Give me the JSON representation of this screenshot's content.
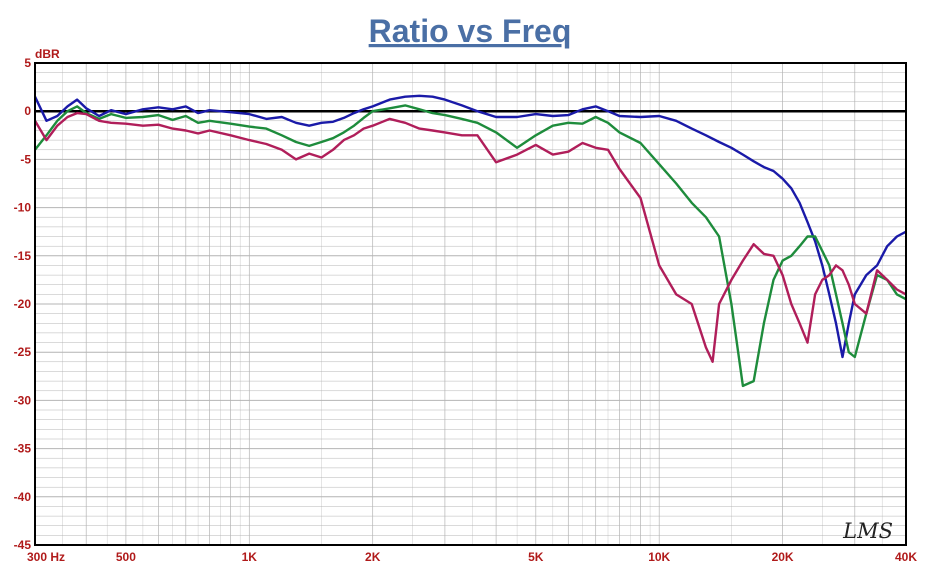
{
  "chart_data": {
    "type": "line",
    "title": "Ratio vs Freq",
    "ylabel": "dBR",
    "xlabel": "",
    "x_scale": "log",
    "xlim": [
      300,
      40000
    ],
    "ylim": [
      -45,
      5
    ],
    "y_ticks": [
      5,
      0,
      -5,
      -10,
      -15,
      -20,
      -25,
      -30,
      -35,
      -40,
      -45
    ],
    "x_ticks": [
      {
        "value": 300,
        "label": "300  Hz"
      },
      {
        "value": 500,
        "label": "500"
      },
      {
        "value": 1000,
        "label": "1K"
      },
      {
        "value": 2000,
        "label": "2K"
      },
      {
        "value": 5000,
        "label": "5K"
      },
      {
        "value": 10000,
        "label": "10K"
      },
      {
        "value": 20000,
        "label": "20K"
      },
      {
        "value": 40000,
        "label": "40K"
      }
    ],
    "reference_line": 0,
    "grid": true,
    "watermark": "LMS",
    "colors": {
      "title": "#4a6fa5",
      "tick_labels": "#b01a1a",
      "grid": "#b4b4b4",
      "frame": "#000000"
    },
    "series": [
      {
        "color": "#1a1aa8",
        "points": [
          [
            300,
            1.5
          ],
          [
            320,
            -1
          ],
          [
            340,
            -0.5
          ],
          [
            360,
            0.5
          ],
          [
            380,
            1.2
          ],
          [
            400,
            0.3
          ],
          [
            430,
            -0.5
          ],
          [
            460,
            0.1
          ],
          [
            500,
            -0.3
          ],
          [
            550,
            0.2
          ],
          [
            600,
            0.4
          ],
          [
            650,
            0.2
          ],
          [
            700,
            0.5
          ],
          [
            750,
            -0.2
          ],
          [
            800,
            0.1
          ],
          [
            900,
            -0.1
          ],
          [
            1000,
            -0.3
          ],
          [
            1100,
            -0.8
          ],
          [
            1200,
            -0.6
          ],
          [
            1300,
            -1.2
          ],
          [
            1400,
            -1.5
          ],
          [
            1500,
            -1.2
          ],
          [
            1600,
            -1.1
          ],
          [
            1700,
            -0.7
          ],
          [
            1800,
            -0.2
          ],
          [
            1900,
            0.2
          ],
          [
            2000,
            0.5
          ],
          [
            2200,
            1.2
          ],
          [
            2400,
            1.5
          ],
          [
            2600,
            1.6
          ],
          [
            2800,
            1.5
          ],
          [
            3000,
            1.2
          ],
          [
            3300,
            0.6
          ],
          [
            3600,
            0
          ],
          [
            4000,
            -0.6
          ],
          [
            4500,
            -0.6
          ],
          [
            5000,
            -0.3
          ],
          [
            5500,
            -0.5
          ],
          [
            6000,
            -0.4
          ],
          [
            6500,
            0.2
          ],
          [
            7000,
            0.5
          ],
          [
            7500,
            0
          ],
          [
            8000,
            -0.5
          ],
          [
            9000,
            -0.6
          ],
          [
            10000,
            -0.5
          ],
          [
            11000,
            -1
          ],
          [
            12000,
            -1.8
          ],
          [
            13000,
            -2.5
          ],
          [
            14000,
            -3.2
          ],
          [
            15000,
            -3.8
          ],
          [
            16000,
            -4.5
          ],
          [
            17000,
            -5.2
          ],
          [
            18000,
            -5.8
          ],
          [
            19000,
            -6.2
          ],
          [
            20000,
            -7
          ],
          [
            21000,
            -8
          ],
          [
            22000,
            -9.5
          ],
          [
            23000,
            -11.5
          ],
          [
            24000,
            -13.5
          ],
          [
            25000,
            -16
          ],
          [
            26000,
            -19
          ],
          [
            27000,
            -22
          ],
          [
            28000,
            -25.5
          ],
          [
            29000,
            -22
          ],
          [
            30000,
            -19
          ],
          [
            32000,
            -17
          ],
          [
            34000,
            -16
          ],
          [
            36000,
            -14
          ],
          [
            38000,
            -13
          ],
          [
            40000,
            -12.5
          ]
        ]
      },
      {
        "color": "#1e8c3c",
        "points": [
          [
            300,
            -4
          ],
          [
            320,
            -2.5
          ],
          [
            340,
            -1
          ],
          [
            360,
            0
          ],
          [
            380,
            0.5
          ],
          [
            400,
            -0.2
          ],
          [
            430,
            -0.8
          ],
          [
            460,
            -0.3
          ],
          [
            500,
            -0.7
          ],
          [
            550,
            -0.6
          ],
          [
            600,
            -0.4
          ],
          [
            650,
            -0.9
          ],
          [
            700,
            -0.5
          ],
          [
            750,
            -1.2
          ],
          [
            800,
            -1
          ],
          [
            900,
            -1.3
          ],
          [
            1000,
            -1.6
          ],
          [
            1100,
            -1.8
          ],
          [
            1200,
            -2.5
          ],
          [
            1300,
            -3.2
          ],
          [
            1400,
            -3.6
          ],
          [
            1500,
            -3.2
          ],
          [
            1600,
            -2.8
          ],
          [
            1700,
            -2.2
          ],
          [
            1800,
            -1.5
          ],
          [
            1900,
            -0.7
          ],
          [
            2000,
            0
          ],
          [
            2200,
            0.3
          ],
          [
            2400,
            0.6
          ],
          [
            2600,
            0.2
          ],
          [
            2800,
            -0.2
          ],
          [
            3000,
            -0.4
          ],
          [
            3300,
            -0.8
          ],
          [
            3600,
            -1.2
          ],
          [
            4000,
            -2.2
          ],
          [
            4500,
            -3.8
          ],
          [
            5000,
            -2.5
          ],
          [
            5500,
            -1.5
          ],
          [
            6000,
            -1.2
          ],
          [
            6500,
            -1.3
          ],
          [
            7000,
            -0.6
          ],
          [
            7500,
            -1.2
          ],
          [
            8000,
            -2.2
          ],
          [
            9000,
            -3.3
          ],
          [
            10000,
            -5.5
          ],
          [
            11000,
            -7.5
          ],
          [
            12000,
            -9.5
          ],
          [
            13000,
            -11
          ],
          [
            14000,
            -13
          ],
          [
            15000,
            -20
          ],
          [
            16000,
            -28.5
          ],
          [
            17000,
            -28
          ],
          [
            18000,
            -22
          ],
          [
            19000,
            -17.5
          ],
          [
            20000,
            -15.5
          ],
          [
            21000,
            -15
          ],
          [
            22000,
            -14
          ],
          [
            23000,
            -13
          ],
          [
            24000,
            -13
          ],
          [
            25000,
            -14.5
          ],
          [
            26000,
            -16
          ],
          [
            27000,
            -19
          ],
          [
            28000,
            -22
          ],
          [
            29000,
            -25
          ],
          [
            30000,
            -25.5
          ],
          [
            32000,
            -21
          ],
          [
            34000,
            -17
          ],
          [
            36000,
            -17.5
          ],
          [
            38000,
            -19
          ],
          [
            40000,
            -19.5
          ]
        ]
      },
      {
        "color": "#b01e5a",
        "points": [
          [
            300,
            -1
          ],
          [
            320,
            -3
          ],
          [
            340,
            -1.5
          ],
          [
            360,
            -0.6
          ],
          [
            380,
            -0.2
          ],
          [
            400,
            -0.3
          ],
          [
            430,
            -1
          ],
          [
            460,
            -1.2
          ],
          [
            500,
            -1.3
          ],
          [
            550,
            -1.5
          ],
          [
            600,
            -1.4
          ],
          [
            650,
            -1.8
          ],
          [
            700,
            -2
          ],
          [
            750,
            -2.3
          ],
          [
            800,
            -2
          ],
          [
            900,
            -2.5
          ],
          [
            1000,
            -3
          ],
          [
            1100,
            -3.4
          ],
          [
            1200,
            -4
          ],
          [
            1300,
            -5
          ],
          [
            1400,
            -4.4
          ],
          [
            1500,
            -4.8
          ],
          [
            1600,
            -4
          ],
          [
            1700,
            -3
          ],
          [
            1800,
            -2.5
          ],
          [
            1900,
            -1.8
          ],
          [
            2000,
            -1.5
          ],
          [
            2200,
            -0.8
          ],
          [
            2400,
            -1.2
          ],
          [
            2600,
            -1.8
          ],
          [
            2800,
            -2
          ],
          [
            3000,
            -2.2
          ],
          [
            3300,
            -2.5
          ],
          [
            3600,
            -2.5
          ],
          [
            4000,
            -5.3
          ],
          [
            4500,
            -4.5
          ],
          [
            5000,
            -3.5
          ],
          [
            5500,
            -4.5
          ],
          [
            6000,
            -4.2
          ],
          [
            6500,
            -3.3
          ],
          [
            7000,
            -3.8
          ],
          [
            7500,
            -4
          ],
          [
            8000,
            -6
          ],
          [
            9000,
            -9
          ],
          [
            10000,
            -16
          ],
          [
            11000,
            -19
          ],
          [
            12000,
            -20
          ],
          [
            13000,
            -24.5
          ],
          [
            13500,
            -26
          ],
          [
            14000,
            -20
          ],
          [
            15000,
            -17.5
          ],
          [
            16000,
            -15.5
          ],
          [
            17000,
            -13.8
          ],
          [
            18000,
            -14.8
          ],
          [
            19000,
            -15
          ],
          [
            20000,
            -17
          ],
          [
            21000,
            -20
          ],
          [
            22000,
            -22
          ],
          [
            23000,
            -24
          ],
          [
            24000,
            -19
          ],
          [
            25000,
            -17.5
          ],
          [
            26000,
            -17
          ],
          [
            27000,
            -16
          ],
          [
            28000,
            -16.5
          ],
          [
            29000,
            -18
          ],
          [
            30000,
            -20
          ],
          [
            32000,
            -21
          ],
          [
            34000,
            -16.5
          ],
          [
            36000,
            -17.5
          ],
          [
            38000,
            -18.5
          ],
          [
            40000,
            -19
          ]
        ]
      }
    ]
  }
}
